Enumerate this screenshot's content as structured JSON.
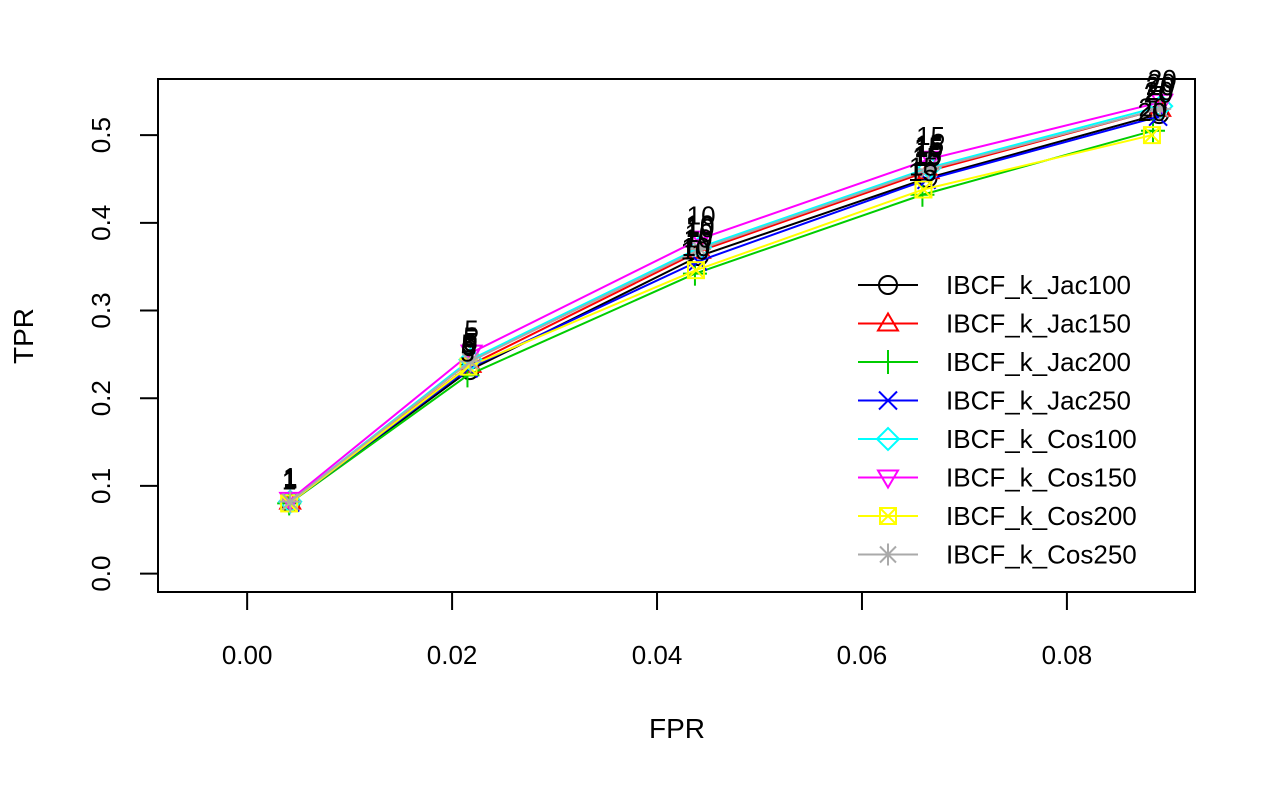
{
  "chart_data": {
    "type": "line",
    "title": "",
    "xlabel": "FPR",
    "ylabel": "TPR",
    "xlim": [
      -0.0087,
      0.0925
    ],
    "ylim": [
      -0.021,
      0.564
    ],
    "xticks": [
      0.0,
      0.02,
      0.04,
      0.06,
      0.08
    ],
    "xtick_labels": [
      "0.00",
      "0.02",
      "0.04",
      "0.06",
      "0.08"
    ],
    "yticks": [
      0.0,
      0.1,
      0.2,
      0.3,
      0.4,
      0.5
    ],
    "ytick_labels": [
      "0.0",
      "0.1",
      "0.2",
      "0.3",
      "0.4",
      "0.5"
    ],
    "grid": false,
    "legend_position": "bottom-right",
    "point_labels": [
      "1",
      "5",
      "10",
      "15",
      "20"
    ],
    "series": [
      {
        "name": "IBCF_k_Jac100",
        "color": "#000000",
        "marker": "circle",
        "x": [
          0.0042,
          0.0217,
          0.0441,
          0.0664,
          0.089
        ],
        "y": [
          0.081,
          0.232,
          0.362,
          0.451,
          0.524
        ]
      },
      {
        "name": "IBCF_k_Jac150",
        "color": "#ff0000",
        "marker": "triangle-up",
        "x": [
          0.0042,
          0.0218,
          0.0442,
          0.0665,
          0.0891
        ],
        "y": [
          0.082,
          0.238,
          0.368,
          0.459,
          0.53
        ]
      },
      {
        "name": "IBCF_k_Jac200",
        "color": "#00cd00",
        "marker": "plus",
        "x": [
          0.0041,
          0.0215,
          0.0437,
          0.0659,
          0.0884
        ],
        "y": [
          0.08,
          0.226,
          0.342,
          0.432,
          0.505
        ]
      },
      {
        "name": "IBCF_k_Jac250",
        "color": "#0000ff",
        "marker": "cross",
        "x": [
          0.0042,
          0.0216,
          0.044,
          0.0663,
          0.0889
        ],
        "y": [
          0.081,
          0.234,
          0.356,
          0.449,
          0.521
        ]
      },
      {
        "name": "IBCF_k_Cos100",
        "color": "#00ffff",
        "marker": "diamond",
        "x": [
          0.0042,
          0.0218,
          0.0442,
          0.0666,
          0.0892
        ],
        "y": [
          0.082,
          0.244,
          0.372,
          0.463,
          0.533
        ]
      },
      {
        "name": "IBCF_k_Cos150",
        "color": "#ff00ff",
        "marker": "triangle-down",
        "x": [
          0.0042,
          0.0219,
          0.0443,
          0.0667,
          0.0893
        ],
        "y": [
          0.084,
          0.252,
          0.382,
          0.473,
          0.538
        ]
      },
      {
        "name": "IBCF_k_Cos200",
        "color": "#ffff00",
        "marker": "square-cross",
        "x": [
          0.0041,
          0.0216,
          0.0438,
          0.066,
          0.0883
        ],
        "y": [
          0.08,
          0.236,
          0.346,
          0.438,
          0.5
        ]
      },
      {
        "name": "IBCF_k_Cos250",
        "color": "#aaaaaa",
        "marker": "asterisk",
        "x": [
          0.0042,
          0.0218,
          0.0442,
          0.0665,
          0.0891
        ],
        "y": [
          0.082,
          0.242,
          0.37,
          0.461,
          0.53
        ]
      }
    ]
  }
}
